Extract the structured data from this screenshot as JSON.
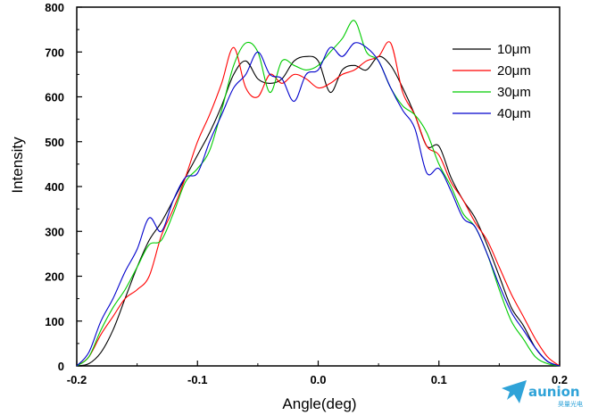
{
  "chart_data": {
    "type": "line",
    "title": "",
    "xlabel": "Angle(deg)",
    "ylabel": "Intensity",
    "xlim": [
      -0.2,
      0.2
    ],
    "ylim": [
      0,
      800
    ],
    "xticks": [
      -0.2,
      -0.1,
      0.0,
      0.1,
      0.2
    ],
    "xtick_labels": [
      "-0.2",
      "-0.1",
      "0.0",
      "0.1",
      "0.2"
    ],
    "yticks": [
      0,
      100,
      200,
      300,
      400,
      500,
      600,
      700,
      800
    ],
    "ytick_labels": [
      "0",
      "100",
      "200",
      "300",
      "400",
      "500",
      "600",
      "700",
      "800"
    ],
    "grid": false,
    "legend_position": "top-right",
    "series": [
      {
        "name": "10μm",
        "color": "#000000",
        "x": [
          -0.2,
          -0.19,
          -0.18,
          -0.17,
          -0.16,
          -0.15,
          -0.14,
          -0.13,
          -0.12,
          -0.11,
          -0.1,
          -0.09,
          -0.08,
          -0.07,
          -0.06,
          -0.05,
          -0.04,
          -0.03,
          -0.02,
          -0.01,
          0.0,
          0.01,
          0.02,
          0.03,
          0.04,
          0.05,
          0.06,
          0.07,
          0.08,
          0.09,
          0.1,
          0.11,
          0.12,
          0.13,
          0.14,
          0.15,
          0.16,
          0.17,
          0.18,
          0.19,
          0.2
        ],
        "y": [
          0,
          5,
          30,
          80,
          150,
          220,
          280,
          320,
          370,
          420,
          470,
          520,
          580,
          650,
          680,
          640,
          630,
          640,
          680,
          690,
          680,
          610,
          660,
          670,
          660,
          690,
          670,
          620,
          560,
          490,
          490,
          420,
          370,
          330,
          270,
          200,
          130,
          90,
          40,
          10,
          0
        ]
      },
      {
        "name": "20μm",
        "color": "#ff0000",
        "x": [
          -0.2,
          -0.19,
          -0.18,
          -0.17,
          -0.16,
          -0.15,
          -0.14,
          -0.13,
          -0.12,
          -0.11,
          -0.1,
          -0.09,
          -0.08,
          -0.07,
          -0.06,
          -0.05,
          -0.04,
          -0.03,
          -0.02,
          -0.01,
          0.0,
          0.01,
          0.02,
          0.03,
          0.04,
          0.05,
          0.06,
          0.07,
          0.08,
          0.09,
          0.1,
          0.11,
          0.12,
          0.13,
          0.14,
          0.15,
          0.16,
          0.17,
          0.18,
          0.19,
          0.2
        ],
        "y": [
          0,
          20,
          70,
          110,
          150,
          170,
          200,
          290,
          350,
          420,
          500,
          560,
          630,
          710,
          620,
          600,
          650,
          630,
          650,
          640,
          620,
          630,
          650,
          660,
          680,
          690,
          720,
          610,
          560,
          490,
          470,
          410,
          370,
          320,
          280,
          220,
          160,
          110,
          60,
          20,
          0
        ]
      },
      {
        "name": "30μm",
        "color": "#00cc00",
        "x": [
          -0.2,
          -0.19,
          -0.18,
          -0.17,
          -0.16,
          -0.15,
          -0.14,
          -0.13,
          -0.12,
          -0.11,
          -0.1,
          -0.09,
          -0.08,
          -0.07,
          -0.06,
          -0.05,
          -0.04,
          -0.03,
          -0.02,
          -0.01,
          0.0,
          0.01,
          0.02,
          0.03,
          0.04,
          0.05,
          0.06,
          0.07,
          0.08,
          0.09,
          0.1,
          0.11,
          0.12,
          0.13,
          0.14,
          0.15,
          0.16,
          0.17,
          0.18,
          0.19,
          0.2
        ],
        "y": [
          0,
          20,
          80,
          130,
          170,
          220,
          270,
          280,
          340,
          410,
          440,
          480,
          570,
          670,
          720,
          700,
          610,
          680,
          670,
          660,
          670,
          700,
          730,
          770,
          700,
          680,
          620,
          580,
          560,
          520,
          450,
          400,
          340,
          310,
          250,
          170,
          100,
          60,
          20,
          5,
          0
        ]
      },
      {
        "name": "40μm",
        "color": "#0000cc",
        "x": [
          -0.2,
          -0.19,
          -0.18,
          -0.17,
          -0.16,
          -0.15,
          -0.14,
          -0.13,
          -0.12,
          -0.11,
          -0.1,
          -0.09,
          -0.08,
          -0.07,
          -0.06,
          -0.05,
          -0.04,
          -0.03,
          -0.02,
          -0.01,
          0.0,
          0.01,
          0.02,
          0.03,
          0.04,
          0.05,
          0.06,
          0.07,
          0.08,
          0.09,
          0.1,
          0.11,
          0.12,
          0.13,
          0.14,
          0.15,
          0.16,
          0.17,
          0.18,
          0.19,
          0.2
        ],
        "y": [
          0,
          30,
          100,
          150,
          210,
          260,
          330,
          300,
          370,
          420,
          430,
          500,
          560,
          620,
          650,
          700,
          650,
          640,
          590,
          650,
          660,
          710,
          690,
          720,
          710,
          680,
          620,
          570,
          530,
          430,
          440,
          390,
          330,
          310,
          250,
          180,
          120,
          80,
          40,
          10,
          0
        ]
      }
    ]
  },
  "watermark": {
    "brand": "aunion",
    "sub": "昊量光电"
  }
}
